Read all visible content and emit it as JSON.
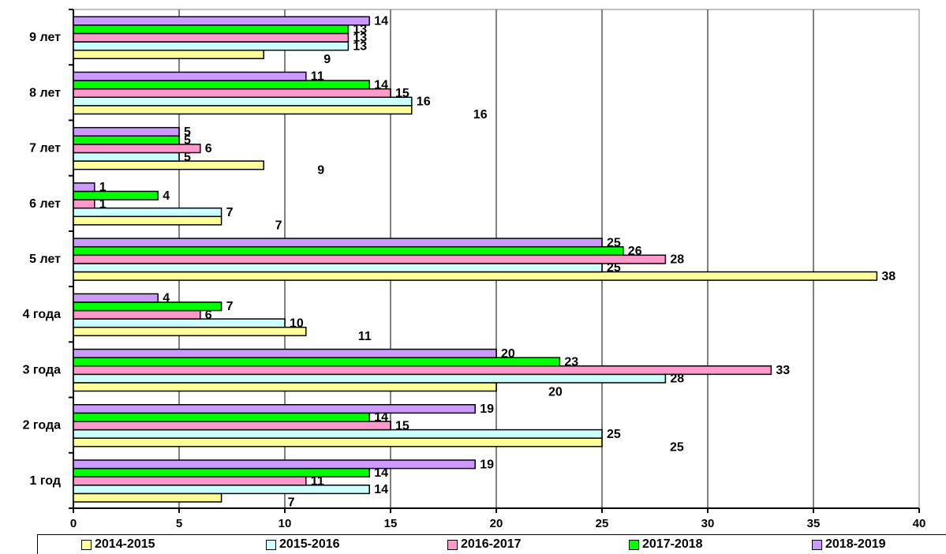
{
  "chart_data": {
    "type": "bar",
    "orientation": "horizontal",
    "categories": [
      "1 год",
      "2 года",
      "3 года",
      "4 года",
      "5 лет",
      "6 лет",
      "7 лет",
      "8 лет",
      "9 лет"
    ],
    "series": [
      {
        "name": "2014-2015",
        "color": "#FFFF99",
        "values": [
          7,
          25,
          20,
          11,
          38,
          7,
          9,
          16,
          9
        ]
      },
      {
        "name": "2015-2016",
        "color": "#CCFFFF",
        "values": [
          14,
          25,
          28,
          10,
          25,
          7,
          5,
          16,
          13
        ]
      },
      {
        "name": "2016-2017",
        "color": "#FF99CC",
        "values": [
          11,
          15,
          33,
          6,
          28,
          1,
          6,
          15,
          13
        ]
      },
      {
        "name": "2017-2018",
        "color": "#00FF00",
        "values": [
          14,
          14,
          23,
          7,
          26,
          4,
          5,
          14,
          13
        ]
      },
      {
        "name": "2018-2019",
        "color": "#CC99FF",
        "values": [
          19,
          19,
          20,
          4,
          25,
          1,
          5,
          11,
          14
        ]
      }
    ],
    "xlim": [
      0,
      40
    ],
    "xticks": [
      "0",
      "5",
      "10",
      "15",
      "20",
      "25",
      "30",
      "35",
      "40"
    ],
    "grid": true,
    "legend_position": "bottom",
    "data_labels": true
  }
}
